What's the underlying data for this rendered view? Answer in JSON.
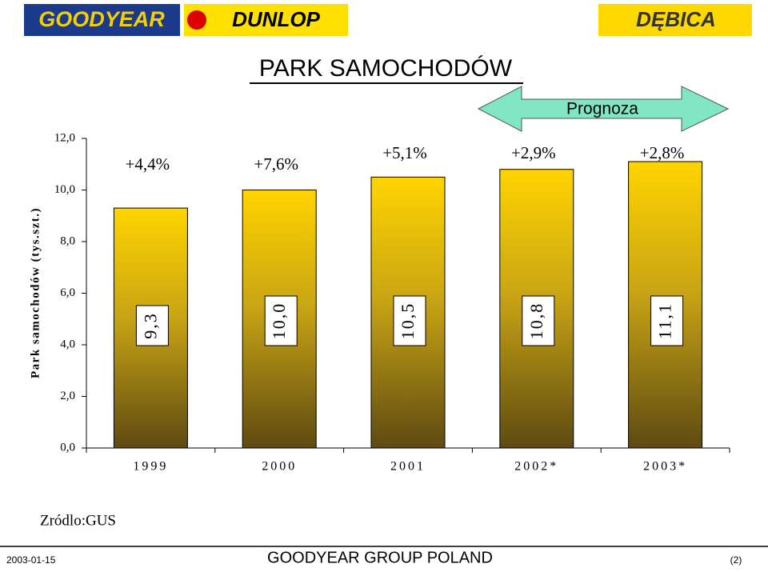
{
  "header": {
    "logos": [
      "GOODYEAR",
      "DUNLOP",
      "DĘBICA"
    ]
  },
  "chart_data": {
    "type": "bar",
    "title": "PARK SAMOCHODÓW",
    "y_label": "Park samochodów (tys.szt.)",
    "forecast_label": "Prognoza",
    "categories": [
      "1999",
      "2000",
      "2001",
      "2002*",
      "2003*"
    ],
    "values": [
      9.3,
      10.0,
      10.5,
      10.8,
      11.1
    ],
    "value_labels": [
      "9,3",
      "10,0",
      "10,5",
      "10,8",
      "11,1"
    ],
    "annotations": [
      "+4,4%",
      "+7,6%",
      "+5,1%",
      "+2,9%",
      "+2,8%"
    ],
    "ylim": [
      0,
      12
    ],
    "yticks": [
      {
        "value": 0,
        "label": "0,0"
      },
      {
        "value": 2,
        "label": "2,0"
      },
      {
        "value": 4,
        "label": "4,0"
      },
      {
        "value": 6,
        "label": "6,0"
      },
      {
        "value": 8,
        "label": "8,0"
      },
      {
        "value": 10,
        "label": "10,0"
      },
      {
        "value": 12,
        "label": "12,0"
      }
    ],
    "grid": false
  },
  "source": "Zródlo:GUS",
  "footer": {
    "date": "2003-01-15",
    "company": "GOODYEAR GROUP POLAND",
    "page": "(2)"
  }
}
